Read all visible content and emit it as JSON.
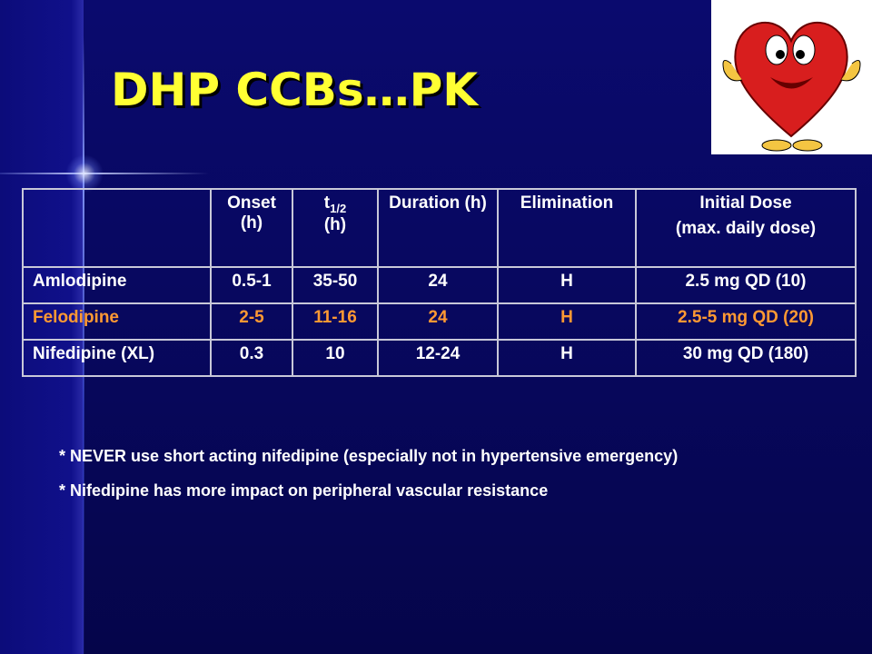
{
  "title": "DHP CCBs…PK",
  "table": {
    "headers": [
      "Onset (h)",
      {
        "main": "t",
        "sub": "1/2",
        "after": "(h)"
      },
      "Duration (h)",
      "Elimination",
      [
        "Initial Dose",
        "(max. daily dose)"
      ]
    ],
    "rows": [
      [
        "Amlodipine",
        "0.5-1",
        "35-50",
        "24",
        "H",
        "2.5 mg QD (10)"
      ],
      [
        "Felodipine",
        "2-5",
        "11-16",
        "24",
        "H",
        "2.5-5 mg QD (20)"
      ],
      [
        "Nifedipine (XL)",
        "0.3",
        "10",
        "12-24",
        "H",
        "30 mg QD (180)"
      ]
    ]
  },
  "notes": [
    "* NEVER use short acting nifedipine (especially not in hypertensive emergency)",
    "* Nifedipine has more impact on peripheral vascular resistance"
  ]
}
